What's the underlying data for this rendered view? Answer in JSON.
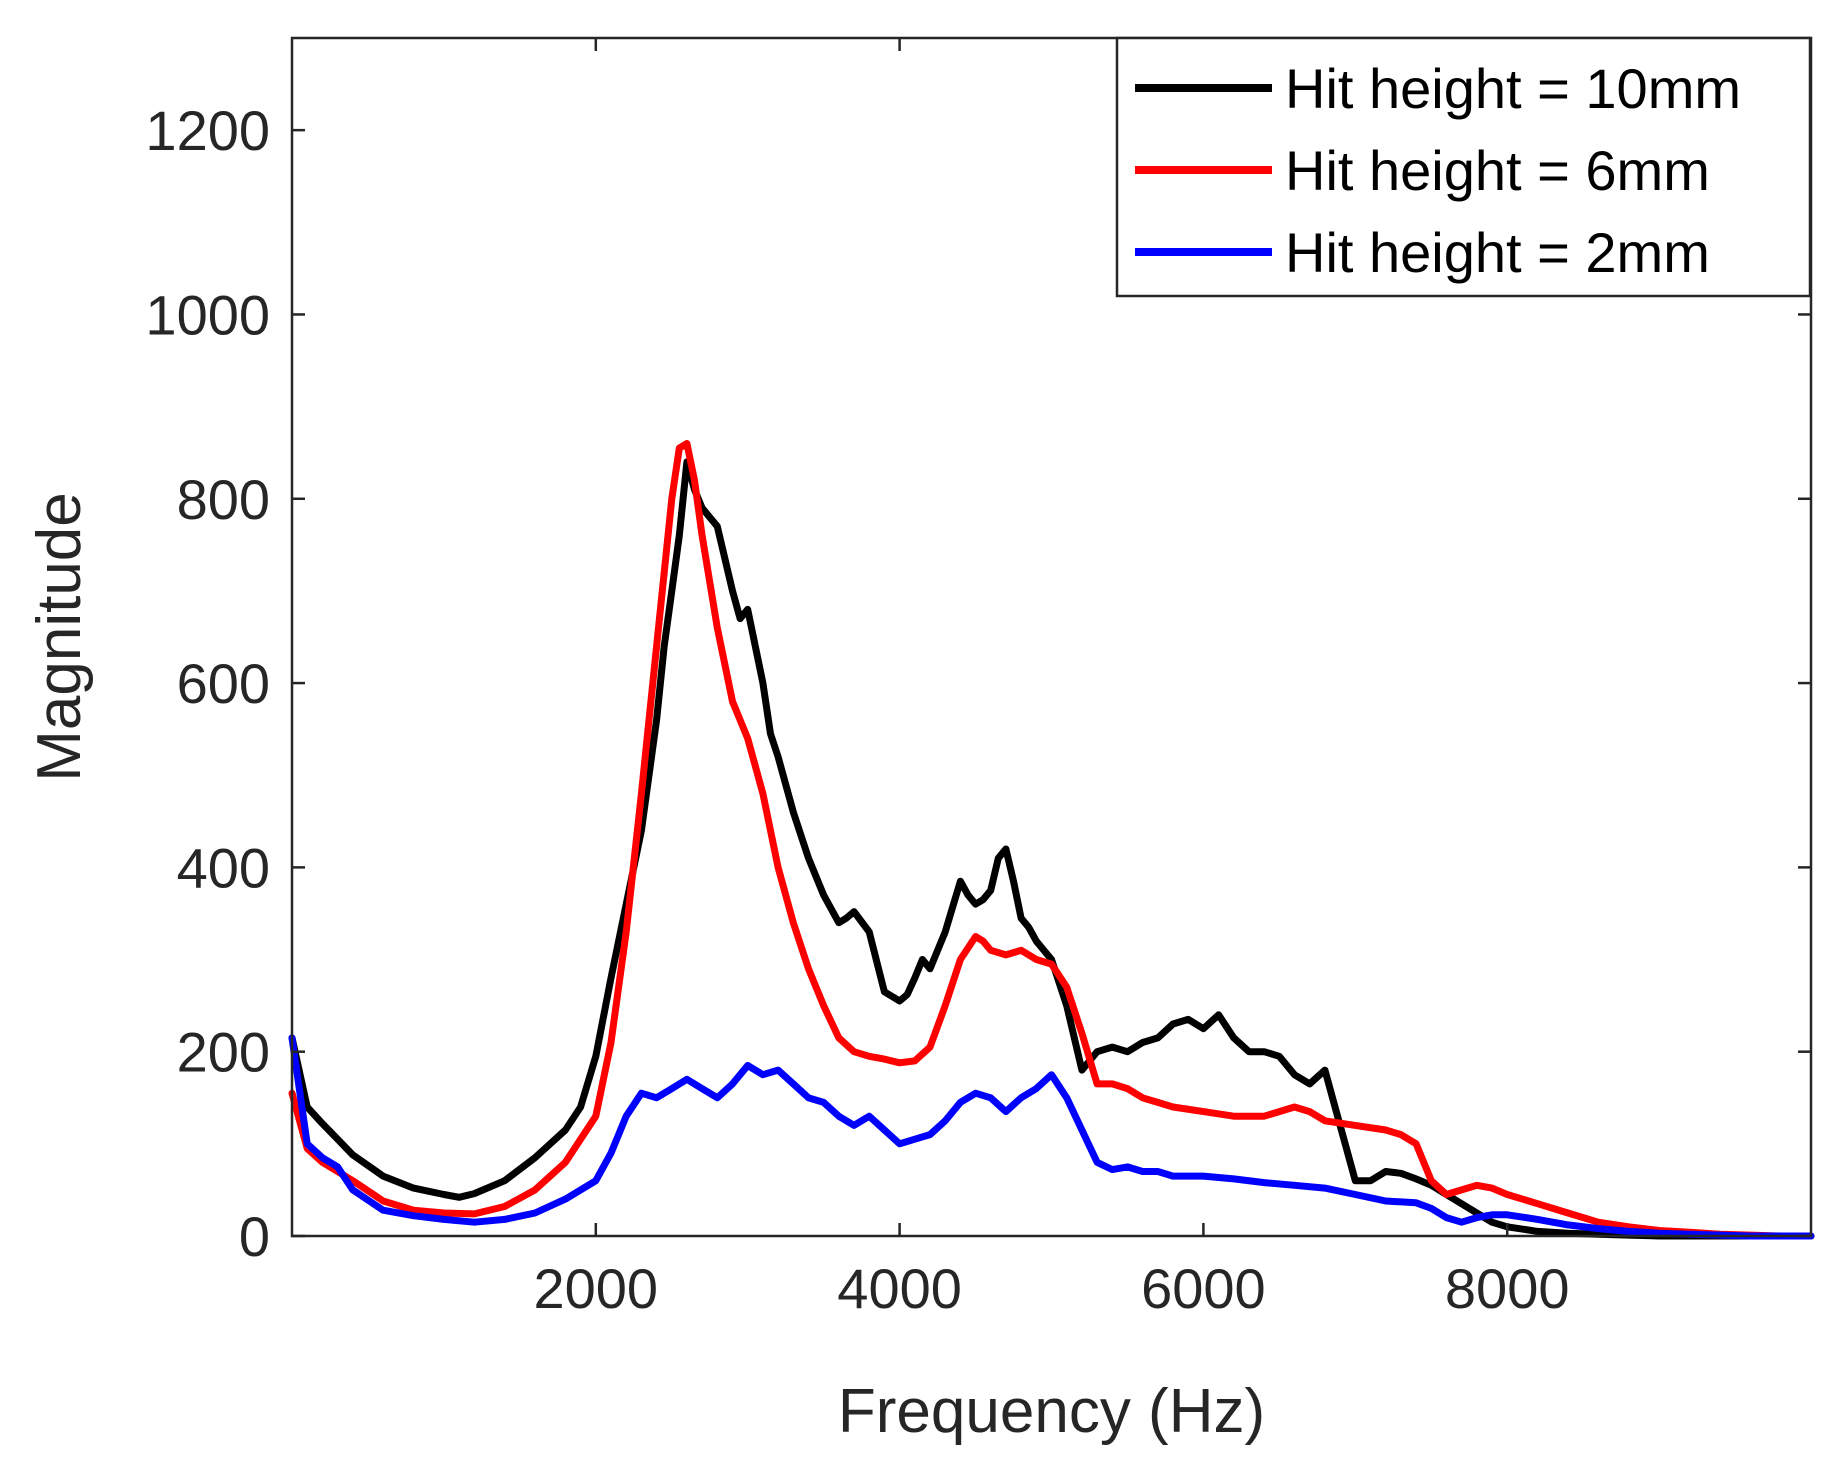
{
  "chart_data": {
    "type": "line",
    "title": "",
    "xlabel": "Frequency (Hz)",
    "ylabel": "Magnitude",
    "xlim": [
      0,
      10000
    ],
    "ylim": [
      0,
      1300
    ],
    "xticks": [
      2000,
      4000,
      6000,
      8000
    ],
    "yticks": [
      0,
      200,
      400,
      600,
      800,
      1000,
      1200
    ],
    "grid": false,
    "legend_position": "top-right",
    "series": [
      {
        "name": "Hit height = 10mm",
        "color": "#000000",
        "x": [
          0,
          100,
          200,
          300,
          400,
          600,
          800,
          1000,
          1100,
          1200,
          1400,
          1600,
          1800,
          1900,
          2000,
          2100,
          2200,
          2300,
          2400,
          2450,
          2500,
          2550,
          2600,
          2650,
          2700,
          2800,
          2900,
          2950,
          3000,
          3100,
          3150,
          3200,
          3300,
          3400,
          3500,
          3600,
          3650,
          3700,
          3800,
          3900,
          4000,
          4050,
          4100,
          4150,
          4200,
          4300,
          4400,
          4450,
          4500,
          4550,
          4600,
          4650,
          4700,
          4750,
          4800,
          4850,
          4900,
          4950,
          5000,
          5100,
          5200,
          5300,
          5400,
          5500,
          5600,
          5700,
          5800,
          5900,
          6000,
          6100,
          6200,
          6300,
          6400,
          6500,
          6600,
          6700,
          6800,
          6900,
          7000,
          7100,
          7200,
          7300,
          7400,
          7500,
          7600,
          7700,
          7800,
          7900,
          8000,
          8200,
          8400,
          8600,
          8800,
          9000,
          9200,
          9400,
          9600,
          9800,
          10000
        ],
        "values": [
          215,
          140,
          122,
          105,
          88,
          65,
          52,
          45,
          42,
          46,
          60,
          85,
          115,
          140,
          195,
          280,
          360,
          440,
          560,
          640,
          700,
          760,
          840,
          810,
          790,
          770,
          700,
          670,
          680,
          600,
          545,
          520,
          460,
          410,
          370,
          340,
          345,
          352,
          330,
          265,
          255,
          262,
          280,
          300,
          290,
          330,
          385,
          370,
          360,
          365,
          375,
          410,
          420,
          385,
          345,
          335,
          320,
          310,
          300,
          250,
          180,
          200,
          205,
          200,
          210,
          215,
          230,
          235,
          225,
          240,
          215,
          200,
          200,
          195,
          175,
          165,
          180,
          120,
          60,
          60,
          70,
          68,
          62,
          55,
          45,
          35,
          25,
          15,
          10,
          5,
          3,
          2,
          1,
          0,
          0,
          0,
          0,
          0,
          0
        ]
      },
      {
        "name": "Hit height = 6mm",
        "color": "#ff0000",
        "x": [
          0,
          100,
          200,
          300,
          400,
          600,
          800,
          1000,
          1200,
          1400,
          1600,
          1800,
          2000,
          2100,
          2200,
          2300,
          2400,
          2450,
          2500,
          2550,
          2600,
          2650,
          2700,
          2800,
          2900,
          3000,
          3100,
          3200,
          3300,
          3400,
          3500,
          3600,
          3700,
          3800,
          3900,
          4000,
          4100,
          4200,
          4300,
          4400,
          4500,
          4550,
          4600,
          4700,
          4800,
          4900,
          5000,
          5100,
          5200,
          5300,
          5400,
          5500,
          5600,
          5700,
          5800,
          6000,
          6200,
          6400,
          6500,
          6600,
          6700,
          6800,
          7000,
          7200,
          7300,
          7400,
          7500,
          7600,
          7700,
          7800,
          7900,
          8000,
          8200,
          8400,
          8600,
          8800,
          9000,
          9200,
          9400,
          9600,
          9800,
          10000
        ],
        "values": [
          155,
          95,
          80,
          70,
          60,
          38,
          28,
          25,
          24,
          32,
          50,
          80,
          130,
          210,
          330,
          480,
          640,
          720,
          800,
          855,
          860,
          820,
          760,
          660,
          580,
          540,
          480,
          400,
          340,
          290,
          250,
          215,
          200,
          195,
          192,
          188,
          190,
          205,
          250,
          300,
          325,
          320,
          310,
          305,
          310,
          300,
          295,
          270,
          220,
          165,
          165,
          160,
          150,
          145,
          140,
          135,
          130,
          130,
          135,
          140,
          135,
          125,
          120,
          115,
          110,
          100,
          60,
          45,
          50,
          55,
          52,
          45,
          35,
          25,
          15,
          10,
          6,
          4,
          2,
          1,
          0,
          0
        ]
      },
      {
        "name": "Hit height = 2mm",
        "color": "#0000ff",
        "x": [
          0,
          100,
          200,
          300,
          400,
          600,
          800,
          1000,
          1200,
          1400,
          1600,
          1800,
          2000,
          2100,
          2200,
          2300,
          2400,
          2500,
          2600,
          2700,
          2800,
          2900,
          3000,
          3100,
          3200,
          3300,
          3400,
          3500,
          3600,
          3700,
          3800,
          3900,
          4000,
          4100,
          4200,
          4300,
          4400,
          4500,
          4600,
          4700,
          4800,
          4900,
          5000,
          5100,
          5200,
          5300,
          5400,
          5500,
          5600,
          5700,
          5800,
          6000,
          6200,
          6400,
          6600,
          6800,
          7000,
          7200,
          7400,
          7500,
          7600,
          7700,
          7800,
          7900,
          8000,
          8200,
          8400,
          8600,
          8800,
          9000,
          9200,
          9400,
          9600,
          9800,
          10000
        ],
        "values": [
          215,
          100,
          85,
          75,
          50,
          28,
          22,
          18,
          15,
          18,
          25,
          40,
          60,
          90,
          130,
          155,
          150,
          160,
          170,
          160,
          150,
          165,
          185,
          175,
          180,
          165,
          150,
          145,
          130,
          120,
          130,
          115,
          100,
          105,
          110,
          125,
          145,
          155,
          150,
          135,
          150,
          160,
          175,
          150,
          115,
          80,
          72,
          75,
          70,
          70,
          65,
          65,
          62,
          58,
          55,
          52,
          45,
          38,
          36,
          30,
          20,
          15,
          20,
          23,
          23,
          18,
          12,
          8,
          5,
          3,
          2,
          1,
          0,
          0,
          0
        ]
      }
    ]
  }
}
